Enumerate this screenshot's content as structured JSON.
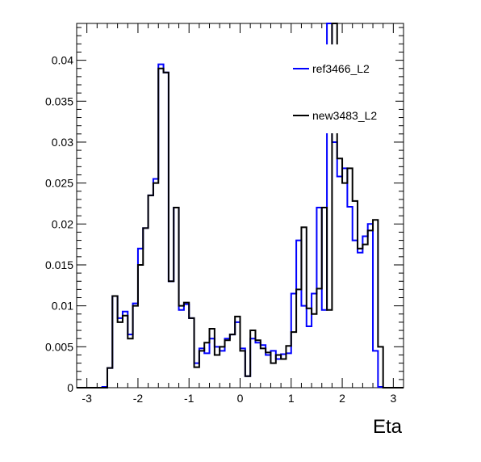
{
  "chart_data": {
    "type": "line",
    "xlabel": "Eta",
    "ylabel": "",
    "xlim": [
      -3.2,
      3.2
    ],
    "ylim": [
      0,
      0.0445
    ],
    "grid": false,
    "legend_position": "top-right",
    "x_ticks": [
      "-3",
      "-2",
      "-1",
      "0",
      "1",
      "2",
      "3"
    ],
    "y_ticks": [
      "0",
      "0.005",
      "0.01",
      "0.015",
      "0.02",
      "0.025",
      "0.03",
      "0.035",
      "0.04"
    ],
    "bin_edges": [
      -3.2,
      -3.1,
      -3.0,
      -2.9,
      -2.8,
      -2.7,
      -2.6,
      -2.5,
      -2.4,
      -2.3,
      -2.2,
      -2.1,
      -2.0,
      -1.9,
      -1.8,
      -1.7,
      -1.6,
      -1.5,
      -1.4,
      -1.3,
      -1.2,
      -1.1,
      -1.0,
      -0.9,
      -0.8,
      -0.7,
      -0.6,
      -0.5,
      -0.4,
      -0.3,
      -0.2,
      -0.1,
      0.0,
      0.1,
      0.2,
      0.3,
      0.4,
      0.5,
      0.6,
      0.7,
      0.8,
      0.9,
      1.0,
      1.1,
      1.2,
      1.3,
      1.4,
      1.5,
      1.6,
      1.7,
      1.8,
      1.9,
      2.0,
      2.1,
      2.2,
      2.3,
      2.4,
      2.5,
      2.6,
      2.7,
      2.8,
      2.9,
      3.0,
      3.1,
      3.2
    ],
    "series": [
      {
        "name": "ref3466_L2",
        "color": "#0000ff",
        "values": [
          0,
          0,
          0,
          0,
          0,
          0.0001,
          0.0024,
          0.0112,
          0.0085,
          0.0093,
          0.0065,
          0.0103,
          0.017,
          0.0195,
          0.0235,
          0.0255,
          0.0395,
          0.0385,
          0.013,
          0.022,
          0.0095,
          0.0102,
          0.0085,
          0.003,
          0.0048,
          0.0042,
          0.006,
          0.005,
          0.0045,
          0.006,
          0.0065,
          0.008,
          0.0048,
          0.0014,
          0.006,
          0.0055,
          0.0052,
          0.004,
          0.0045,
          0.0035,
          0.0041,
          0.0042,
          0.0115,
          0.018,
          0.01,
          0.0075,
          0.0115,
          0.022,
          0.0095,
          0.045,
          0.03,
          0.0258,
          0.0268,
          0.0221,
          0.018,
          0.0165,
          0.0185,
          0.02,
          0.0045,
          0.0001,
          0,
          0,
          0,
          0
        ]
      },
      {
        "name": "new3483_L2",
        "color": "#000000",
        "values": [
          0,
          0,
          0,
          0,
          0,
          0,
          0.0024,
          0.0112,
          0.008,
          0.0088,
          0.006,
          0.01,
          0.015,
          0.0195,
          0.0235,
          0.025,
          0.039,
          0.0385,
          0.013,
          0.022,
          0.01,
          0.0104,
          0.0085,
          0.0025,
          0.0045,
          0.0055,
          0.0072,
          0.004,
          0.005,
          0.0058,
          0.0065,
          0.0087,
          0.0045,
          0.0014,
          0.007,
          0.0058,
          0.0048,
          0.0043,
          0.003,
          0.004,
          0.0035,
          0.0051,
          0.0068,
          0.012,
          0.0196,
          0.0097,
          0.009,
          0.0121,
          0.022,
          0.0095,
          0.0445,
          0.028,
          0.025,
          0.0268,
          0.0228,
          0.017,
          0.0175,
          0.0192,
          0.0205,
          0.005,
          0,
          0,
          0,
          0
        ]
      }
    ]
  }
}
